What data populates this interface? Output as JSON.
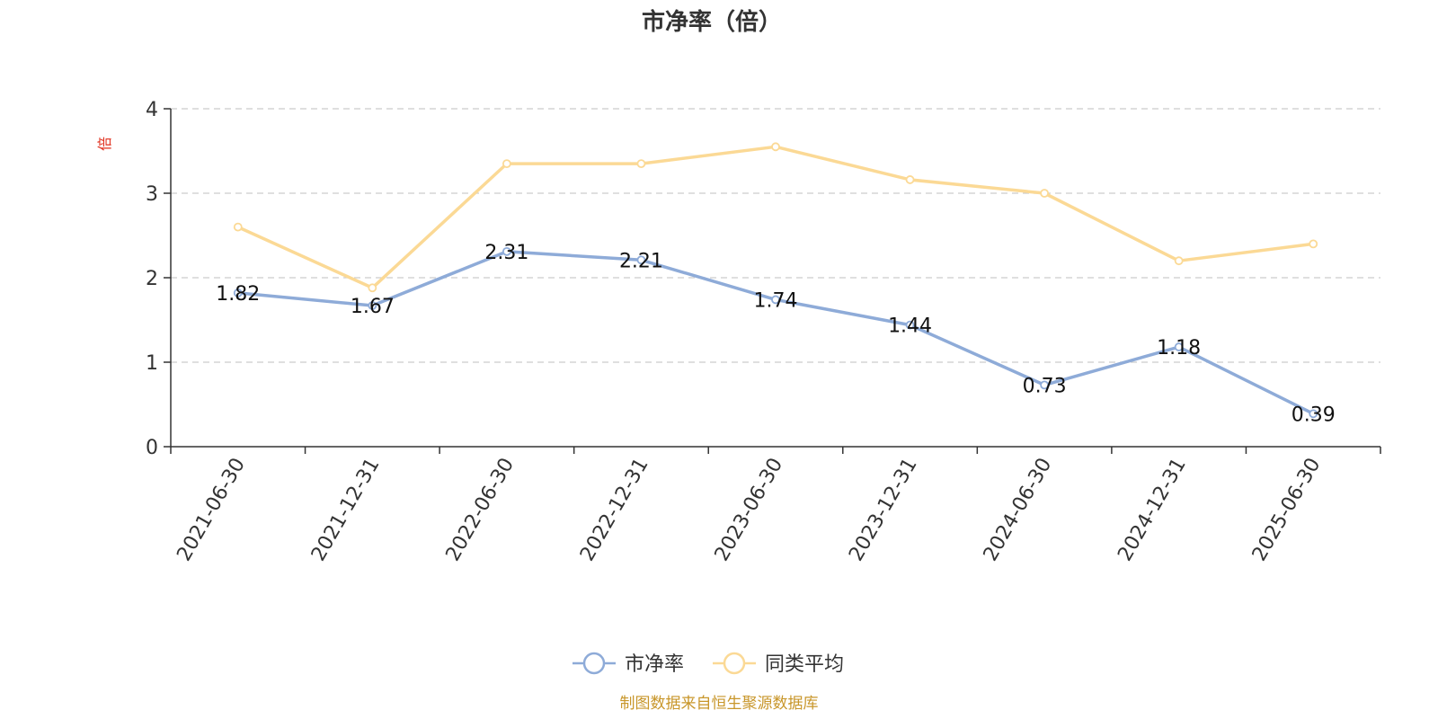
{
  "chart_data": {
    "type": "line",
    "title": "市净率（倍）",
    "ylabel": "倍",
    "categories": [
      "2021-06-30",
      "2021-12-31",
      "2022-06-30",
      "2022-12-31",
      "2023-06-30",
      "2023-12-31",
      "2024-06-30",
      "2024-12-31",
      "2025-06-30"
    ],
    "ylim": [
      0,
      4
    ],
    "yticks": [
      "0",
      "1",
      "2",
      "3",
      "4"
    ],
    "grid": true,
    "legend_position": "bottom",
    "series": [
      {
        "name": "市净率",
        "color": "#8eabd8",
        "show_labels": true,
        "values": [
          1.82,
          1.67,
          2.31,
          2.21,
          1.74,
          1.44,
          0.73,
          1.18,
          0.39
        ],
        "labels": [
          "1.82",
          "1.67",
          "2.31",
          "2.21",
          "1.74",
          "1.44",
          "0.73",
          "1.18",
          "0.39"
        ]
      },
      {
        "name": "同类平均",
        "color": "#fbd995",
        "show_labels": false,
        "values": [
          2.6,
          1.88,
          3.35,
          3.35,
          3.55,
          3.16,
          3.0,
          2.2,
          2.4
        ]
      }
    ],
    "source": "制图数据来自恒生聚源数据库",
    "colors": {
      "ylabel": "#e0301e",
      "source": "#c8962a",
      "axis": "#333333",
      "grid": "#cccccc"
    }
  }
}
